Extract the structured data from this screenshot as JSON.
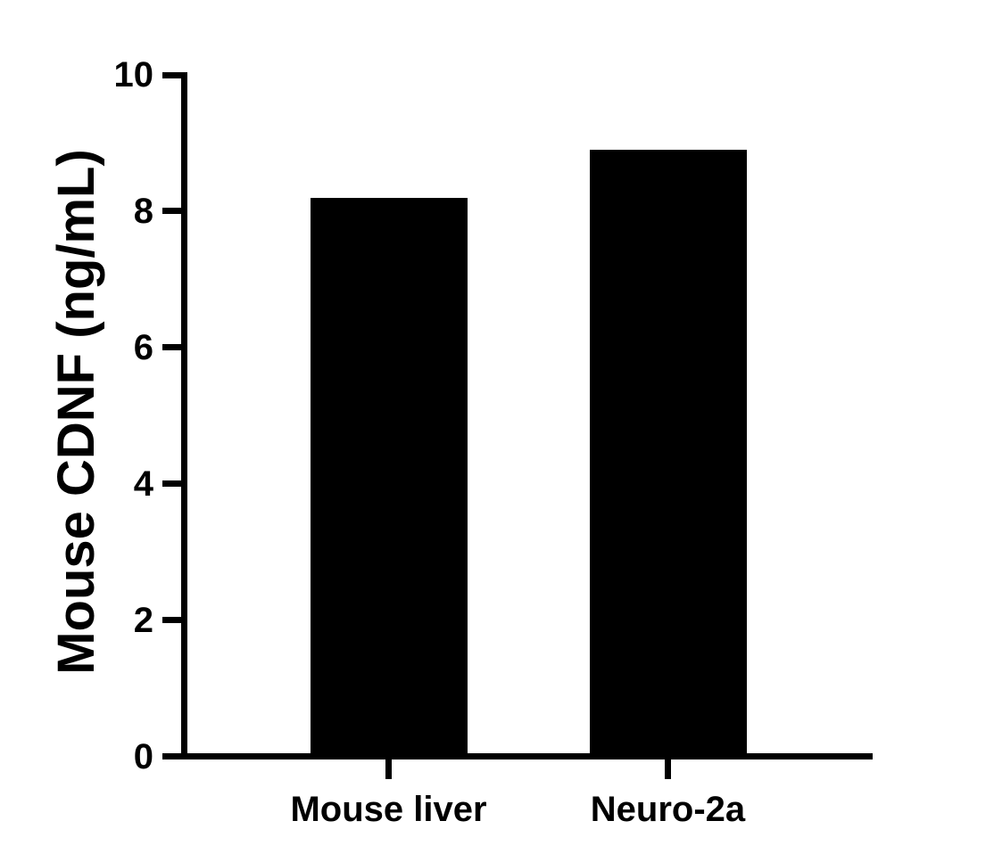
{
  "chart_data": {
    "type": "bar",
    "title": "",
    "xlabel": "",
    "ylabel": "Mouse CDNF (ng/mL)",
    "categories": [
      "Mouse liver",
      "Neuro-2a"
    ],
    "values": [
      8.2,
      8.9
    ],
    "ylim": [
      0,
      10
    ],
    "yticks": [
      0,
      2,
      4,
      6,
      8,
      10
    ],
    "bar_color": "#000000",
    "axis_color": "#000000",
    "background_color": "#ffffff",
    "grid": false,
    "legend": "none"
  }
}
